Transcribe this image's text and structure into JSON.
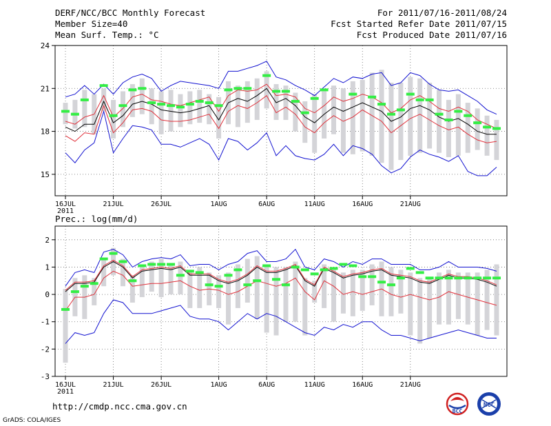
{
  "header": {
    "left": [
      "DERF/NCC/BCC Monthly Forecast",
      "Member Size=40",
      "Mean Surf. Temp.: °C"
    ],
    "right": [
      "For 2011/07/16-2011/08/24",
      "Fcst Started Refer Date 2011/07/15",
      "Fcst Produced Date 2011/07/16"
    ]
  },
  "footer": {
    "url": "http://cmdp.ncc.cma.gov.cn",
    "grads": "GrADS: COLA/IGES"
  },
  "logos": {
    "bcc": "BCC",
    "ncc": "NCC"
  },
  "colors": {
    "black": "#000000",
    "red": "#e0303a",
    "blue": "#1010d0",
    "green": "#33ee44",
    "box": "#d4d4d8",
    "grid": "#666666"
  },
  "chart_data": [
    {
      "type": "line",
      "title": "Mean Surf. Temp.: °C",
      "x_tick_labels": [
        "16JUL",
        "21JUL",
        "26JUL",
        "1AUG",
        "6AUG",
        "11AUG",
        "16AUG",
        "21AUG"
      ],
      "x_year_label": "2011",
      "x_tick_days": [
        1,
        6,
        11,
        17,
        22,
        27,
        32,
        37
      ],
      "ylim": [
        13.5,
        24
      ],
      "yticks": [
        15,
        18,
        21,
        24
      ],
      "series": [
        {
          "name": "ensemble mean",
          "color": "black",
          "values": [
            18.3,
            18.0,
            18.5,
            18.5,
            20.1,
            18.6,
            19.1,
            19.9,
            20.1,
            19.9,
            19.5,
            19.4,
            19.3,
            19.4,
            19.6,
            19.8,
            18.8,
            20.0,
            20.3,
            20.1,
            20.5,
            21.0,
            20.0,
            20.3,
            19.8,
            19.0,
            18.6,
            19.2,
            19.7,
            19.4,
            19.7,
            20.0,
            19.7,
            19.4,
            18.7,
            19.0,
            19.6,
            19.8,
            19.5,
            19.0,
            18.7,
            18.9,
            18.5,
            18.0,
            17.8,
            17.8
          ]
        },
        {
          "name": "upper red",
          "color": "red",
          "values": [
            18.7,
            18.5,
            19.0,
            19.2,
            20.5,
            19.0,
            19.6,
            20.4,
            20.6,
            20.2,
            20.1,
            19.9,
            19.8,
            20.0,
            20.2,
            20.4,
            19.4,
            20.5,
            20.9,
            20.8,
            20.9,
            21.3,
            20.5,
            20.6,
            20.4,
            19.6,
            19.3,
            19.8,
            20.4,
            20.1,
            20.3,
            20.6,
            20.4,
            20.0,
            19.3,
            19.6,
            20.2,
            20.5,
            20.1,
            19.6,
            19.4,
            19.7,
            19.4,
            18.8,
            18.5,
            18.2
          ]
        },
        {
          "name": "lower red",
          "color": "red",
          "values": [
            17.7,
            17.3,
            17.9,
            17.8,
            19.8,
            17.9,
            18.6,
            19.5,
            19.6,
            19.4,
            18.8,
            18.7,
            18.7,
            18.8,
            19.0,
            19.2,
            18.2,
            19.4,
            19.8,
            19.6,
            20.0,
            20.5,
            19.3,
            19.7,
            19.2,
            18.3,
            17.9,
            18.6,
            19.1,
            18.7,
            19.0,
            19.5,
            19.1,
            18.7,
            17.9,
            18.4,
            18.9,
            19.2,
            18.8,
            18.4,
            18.1,
            18.3,
            17.8,
            17.4,
            17.2,
            17.3
          ]
        },
        {
          "name": "upper blue",
          "color": "blue",
          "values": [
            20.4,
            20.6,
            21.2,
            20.6,
            21.3,
            20.6,
            21.4,
            21.8,
            22.0,
            21.7,
            20.8,
            21.2,
            21.5,
            21.4,
            21.3,
            21.2,
            21.0,
            22.2,
            22.2,
            22.4,
            22.6,
            22.9,
            21.8,
            21.6,
            21.2,
            20.9,
            20.5,
            21.1,
            21.7,
            21.4,
            21.8,
            21.7,
            22.0,
            22.1,
            21.2,
            21.4,
            22.1,
            21.9,
            21.3,
            20.9,
            20.8,
            20.9,
            20.5,
            20.1,
            19.5,
            19.2
          ]
        },
        {
          "name": "lower blue",
          "color": "blue",
          "values": [
            16.5,
            15.8,
            16.7,
            17.2,
            19.4,
            16.5,
            17.5,
            18.4,
            18.3,
            18.1,
            17.1,
            17.1,
            16.9,
            17.2,
            17.5,
            17.1,
            16.0,
            17.5,
            17.3,
            16.7,
            17.2,
            17.9,
            16.3,
            17.0,
            16.3,
            16.1,
            16.0,
            16.4,
            17.1,
            16.3,
            17.0,
            16.8,
            16.4,
            15.6,
            15.1,
            15.4,
            16.2,
            16.7,
            16.4,
            16.2,
            15.9,
            16.3,
            15.2,
            14.9,
            14.9,
            15.5
          ]
        }
      ],
      "boxes_low": [
        18.5,
        18.2,
        18.3,
        17.8,
        19.4,
        17.5,
        18.3,
        19.0,
        19.2,
        18.5,
        17.8,
        18.0,
        18.3,
        18.5,
        18.6,
        18.5,
        17.5,
        18.5,
        18.3,
        18.6,
        18.8,
        19.6,
        18.8,
        18.8,
        18.0,
        17.2,
        16.5,
        17.5,
        17.8,
        16.5,
        16.4,
        16.6,
        16.3,
        15.8,
        15.3,
        16.0,
        16.3,
        16.5,
        16.8,
        16.5,
        16.2,
        16.3,
        16.5,
        16.7,
        16.3,
        16.0
      ],
      "boxes_high": [
        20.0,
        20.2,
        20.9,
        20.6,
        21.0,
        20.2,
        20.8,
        21.3,
        21.7,
        21.0,
        20.8,
        20.9,
        20.6,
        20.8,
        20.9,
        20.6,
        20.4,
        21.5,
        21.2,
        21.5,
        21.7,
        22.2,
        21.3,
        21.2,
        20.7,
        20.1,
        20.6,
        20.8,
        21.2,
        21.0,
        21.5,
        21.6,
        22.1,
        22.3,
        21.4,
        21.4,
        21.8,
        21.7,
        21.4,
        20.9,
        20.2,
        20.6,
        20.0,
        19.6,
        19.1,
        18.8
      ],
      "green": [
        19.4,
        19.2,
        20.2,
        null,
        21.2,
        19.1,
        19.8,
        20.9,
        21.0,
        20.0,
        19.9,
        19.8,
        19.7,
        19.9,
        20.1,
        20.0,
        19.8,
        20.9,
        21.0,
        21.0,
        null,
        21.9,
        20.8,
        20.8,
        20.1,
        19.3,
        20.3,
        20.9,
        null,
        null,
        20.6,
        null,
        20.4,
        19.9,
        19.2,
        19.5,
        20.6,
        20.2,
        20.2,
        19.2,
        18.8,
        19.4,
        19.1,
        18.6,
        18.3,
        18.2
      ]
    },
    {
      "type": "line",
      "title": "Prec.: log(mm/d)",
      "x_tick_labels": [
        "16JUL",
        "21JUL",
        "26JUL",
        "1AUG",
        "6AUG",
        "11AUG",
        "16AUG",
        "21AUG"
      ],
      "x_year_label": "2011",
      "x_tick_days": [
        1,
        6,
        11,
        17,
        22,
        27,
        32,
        37
      ],
      "ylim": [
        -3,
        2.5
      ],
      "yticks": [
        -3,
        -2,
        -1,
        0,
        1,
        2
      ],
      "series": [
        {
          "name": "ensemble mean",
          "color": "black",
          "values": [
            0.1,
            0.4,
            0.4,
            0.45,
            1.0,
            1.2,
            1.0,
            0.6,
            0.85,
            0.9,
            0.95,
            0.9,
            1.0,
            0.7,
            0.7,
            0.7,
            0.5,
            0.4,
            0.5,
            0.7,
            1.0,
            0.8,
            0.8,
            0.9,
            1.05,
            0.5,
            0.3,
            0.95,
            0.8,
            0.6,
            0.7,
            0.75,
            0.85,
            0.9,
            0.7,
            0.65,
            0.6,
            0.45,
            0.4,
            0.55,
            0.7,
            0.6,
            0.6,
            0.55,
            0.45,
            0.3
          ]
        },
        {
          "name": "upper red",
          "color": "red",
          "values": [
            0.15,
            0.45,
            0.45,
            0.5,
            1.05,
            1.25,
            1.05,
            0.65,
            0.9,
            0.95,
            1.0,
            0.95,
            1.05,
            0.75,
            0.75,
            0.75,
            0.55,
            0.45,
            0.55,
            0.75,
            1.05,
            0.85,
            0.85,
            0.95,
            1.1,
            0.55,
            0.35,
            1.0,
            0.85,
            0.65,
            0.75,
            0.8,
            0.9,
            0.95,
            0.75,
            0.7,
            0.65,
            0.5,
            0.45,
            0.6,
            0.75,
            0.65,
            0.65,
            0.6,
            0.5,
            0.35
          ]
        },
        {
          "name": "lower red",
          "color": "red",
          "values": [
            -0.6,
            -0.1,
            -0.1,
            0.0,
            0.6,
            0.85,
            0.7,
            0.3,
            0.35,
            0.4,
            0.4,
            0.45,
            0.5,
            0.3,
            0.15,
            0.2,
            0.15,
            0.0,
            0.1,
            0.3,
            0.5,
            0.4,
            0.3,
            0.4,
            0.6,
            0.1,
            -0.2,
            0.5,
            0.3,
            0.0,
            0.1,
            0.0,
            0.1,
            0.2,
            0.0,
            -0.1,
            0.0,
            -0.1,
            -0.2,
            -0.1,
            0.1,
            0.0,
            -0.1,
            -0.2,
            -0.3,
            -0.4
          ]
        },
        {
          "name": "upper blue",
          "color": "blue",
          "values": [
            0.3,
            0.8,
            0.9,
            0.8,
            1.55,
            1.65,
            1.45,
            1.0,
            1.2,
            1.3,
            1.35,
            1.3,
            1.45,
            1.05,
            1.1,
            1.1,
            0.9,
            1.1,
            1.2,
            1.5,
            1.6,
            1.2,
            1.2,
            1.3,
            1.65,
            1.0,
            0.9,
            1.3,
            1.2,
            1.0,
            1.2,
            1.1,
            1.3,
            1.3,
            1.1,
            1.1,
            1.1,
            0.9,
            0.9,
            1.0,
            1.2,
            1.0,
            1.0,
            1.0,
            0.95,
            0.85
          ]
        },
        {
          "name": "lower blue",
          "color": "blue",
          "values": [
            -1.8,
            -1.4,
            -1.5,
            -1.4,
            -0.7,
            -0.2,
            -0.3,
            -0.7,
            -0.7,
            -0.7,
            -0.6,
            -0.5,
            -0.4,
            -0.8,
            -0.9,
            -0.9,
            -1.0,
            -1.3,
            -1.0,
            -0.7,
            -0.9,
            -0.7,
            -0.8,
            -1.0,
            -1.2,
            -1.4,
            -1.5,
            -1.2,
            -1.3,
            -1.1,
            -1.2,
            -1.0,
            -1.0,
            -1.3,
            -1.5,
            -1.5,
            -1.6,
            -1.7,
            -1.6,
            -1.5,
            -1.4,
            -1.3,
            -1.4,
            -1.5,
            -1.6,
            -1.6
          ]
        }
      ],
      "boxes_low": [
        -2.5,
        -0.8,
        -0.9,
        -0.4,
        0.3,
        0.7,
        0.3,
        -0.3,
        -0.1,
        0.1,
        -0.1,
        0.0,
        0.0,
        -0.5,
        -0.5,
        -0.4,
        -0.5,
        -1.1,
        -0.5,
        -0.3,
        -0.9,
        -1.4,
        -1.5,
        -1.0,
        -1.0,
        -1.5,
        -0.3,
        -0.5,
        -1.0,
        -0.7,
        -0.8,
        -0.6,
        -0.4,
        -0.8,
        -0.8,
        -0.7,
        -1.5,
        -1.8,
        -1.6,
        -1.1,
        -1.1,
        -0.9,
        -1.1,
        -1.5,
        -1.3,
        -1.5
      ],
      "boxes_high": [
        0.2,
        0.6,
        0.7,
        0.6,
        1.3,
        1.7,
        1.3,
        0.7,
        1.0,
        1.2,
        1.3,
        1.1,
        1.2,
        0.9,
        1.0,
        0.8,
        0.7,
        0.8,
        1.1,
        1.3,
        1.4,
        1.1,
        1.0,
        1.0,
        1.2,
        0.6,
        0.5,
        1.1,
        0.9,
        0.8,
        0.9,
        0.9,
        1.1,
        1.2,
        1.0,
        0.9,
        0.8,
        0.6,
        0.6,
        0.8,
        0.9,
        0.8,
        0.8,
        0.8,
        0.9,
        1.1
      ],
      "green": [
        -0.55,
        0.1,
        0.3,
        0.4,
        1.3,
        1.5,
        1.2,
        0.5,
        1.05,
        1.1,
        1.1,
        1.1,
        0.7,
        0.85,
        0.8,
        0.35,
        0.3,
        0.7,
        0.9,
        0.35,
        0.5,
        1.05,
        0.55,
        0.35,
        1.0,
        0.9,
        0.75,
        0.9,
        0.95,
        1.1,
        1.05,
        0.65,
        0.65,
        0.45,
        0.35,
        0.6,
        0.95,
        0.8,
        0.6,
        0.6,
        0.6,
        0.6,
        0.6,
        0.6,
        0.6,
        0.6
      ]
    }
  ]
}
